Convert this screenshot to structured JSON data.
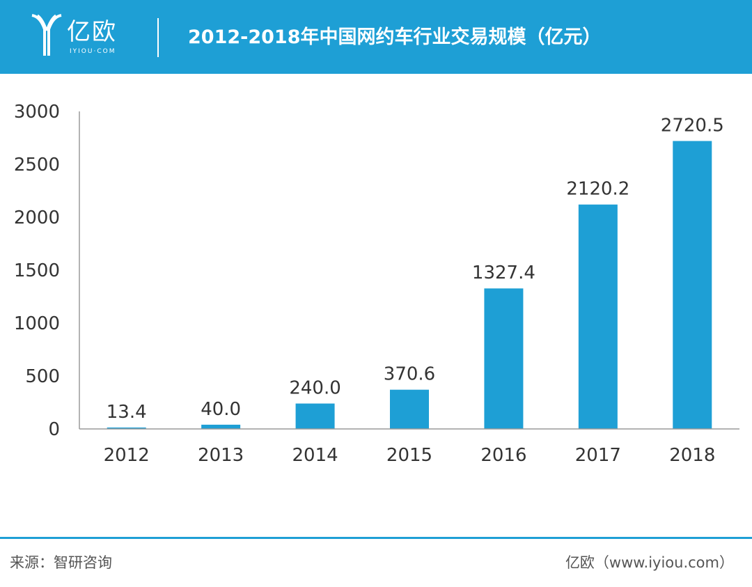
{
  "brand": {
    "name_cn": "亿欧",
    "name_en": "IYIOU·COM",
    "logo_icon": "iyiou-logo-icon"
  },
  "header": {
    "title": "2012-2018年中国网约车行业交易规模（亿元）"
  },
  "colors": {
    "accent": "#1e9fd5",
    "bar": "#1e9fd5",
    "text": "#333333",
    "axis": "#9a9a9a"
  },
  "chart_data": {
    "type": "bar",
    "title": "2012-2018年中国网约车行业交易规模（亿元）",
    "categories": [
      "2012",
      "2013",
      "2014",
      "2015",
      "2016",
      "2017",
      "2018"
    ],
    "values": [
      13.4,
      40.0,
      240.0,
      370.6,
      1327.4,
      2120.2,
      2720.5
    ],
    "data_labels": [
      "13.4",
      "40.0",
      "240.0",
      "370.6",
      "1327.4",
      "2120.2",
      "2720.5"
    ],
    "ylim": [
      0,
      3000
    ],
    "yticks": [
      "0",
      "500",
      "1000",
      "1500",
      "2000",
      "2500",
      "3000"
    ],
    "xlabel": "",
    "ylabel": "",
    "grid": false,
    "legend": "none"
  },
  "footer": {
    "source": "来源：智研咨询",
    "credit": "亿欧（www.iyiou.com）"
  }
}
